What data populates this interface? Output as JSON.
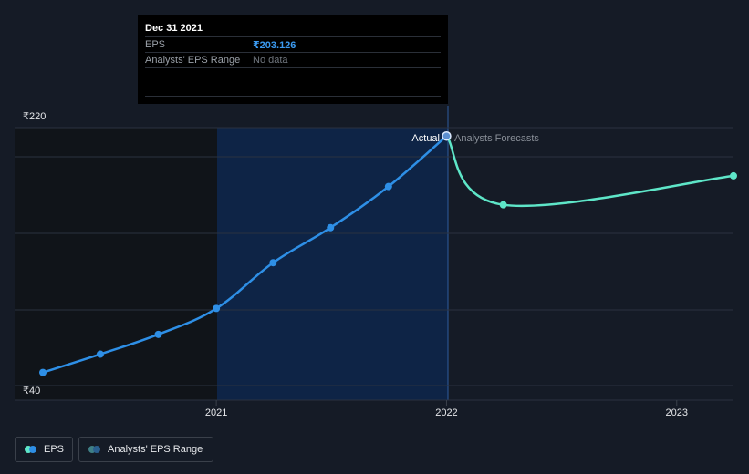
{
  "tooltip": {
    "date": "Dec 31 2021",
    "eps_label": "EPS",
    "eps_value": "₹203.126",
    "range_label": "Analysts' EPS Range",
    "range_value": "No data"
  },
  "labels": {
    "actual": "Actual",
    "forecast": "Analysts Forecasts"
  },
  "legend": {
    "eps": "EPS",
    "range": "Analysts' EPS Range"
  },
  "colors": {
    "background": "#151b26",
    "actual_line": "#2e8fe6",
    "forecast_line": "#5ee6c8",
    "past_shade": "#101419",
    "highlight": "#0e2446",
    "grid": "#2a3240"
  },
  "chart_data": {
    "type": "line",
    "x_axis": {
      "type": "date",
      "ticks": [
        "2021",
        "2022",
        "2023"
      ],
      "range": [
        "2020-03-31",
        "2023-03-31"
      ]
    },
    "y_axis": {
      "ticks": [
        "₹220",
        "₹40"
      ],
      "range": [
        40,
        220
      ],
      "prefix": "₹"
    },
    "grid": true,
    "highlight_range": [
      "2020-12-31",
      "2021-12-31"
    ],
    "series": [
      {
        "name": "EPS",
        "kind": "actual",
        "points": [
          {
            "x": "2020-03-31",
            "y": 48
          },
          {
            "x": "2020-06-30",
            "y": 60
          },
          {
            "x": "2020-09-30",
            "y": 73
          },
          {
            "x": "2020-12-31",
            "y": 90
          },
          {
            "x": "2021-03-31",
            "y": 120
          },
          {
            "x": "2021-06-30",
            "y": 143
          },
          {
            "x": "2021-09-30",
            "y": 170
          },
          {
            "x": "2021-12-31",
            "y": 203.126
          }
        ]
      },
      {
        "name": "Analysts Forecasts",
        "kind": "forecast",
        "points": [
          {
            "x": "2021-12-31",
            "y": 203.126
          },
          {
            "x": "2022-03-31",
            "y": 158
          },
          {
            "x": "2023-03-31",
            "y": 177
          }
        ]
      }
    ]
  }
}
